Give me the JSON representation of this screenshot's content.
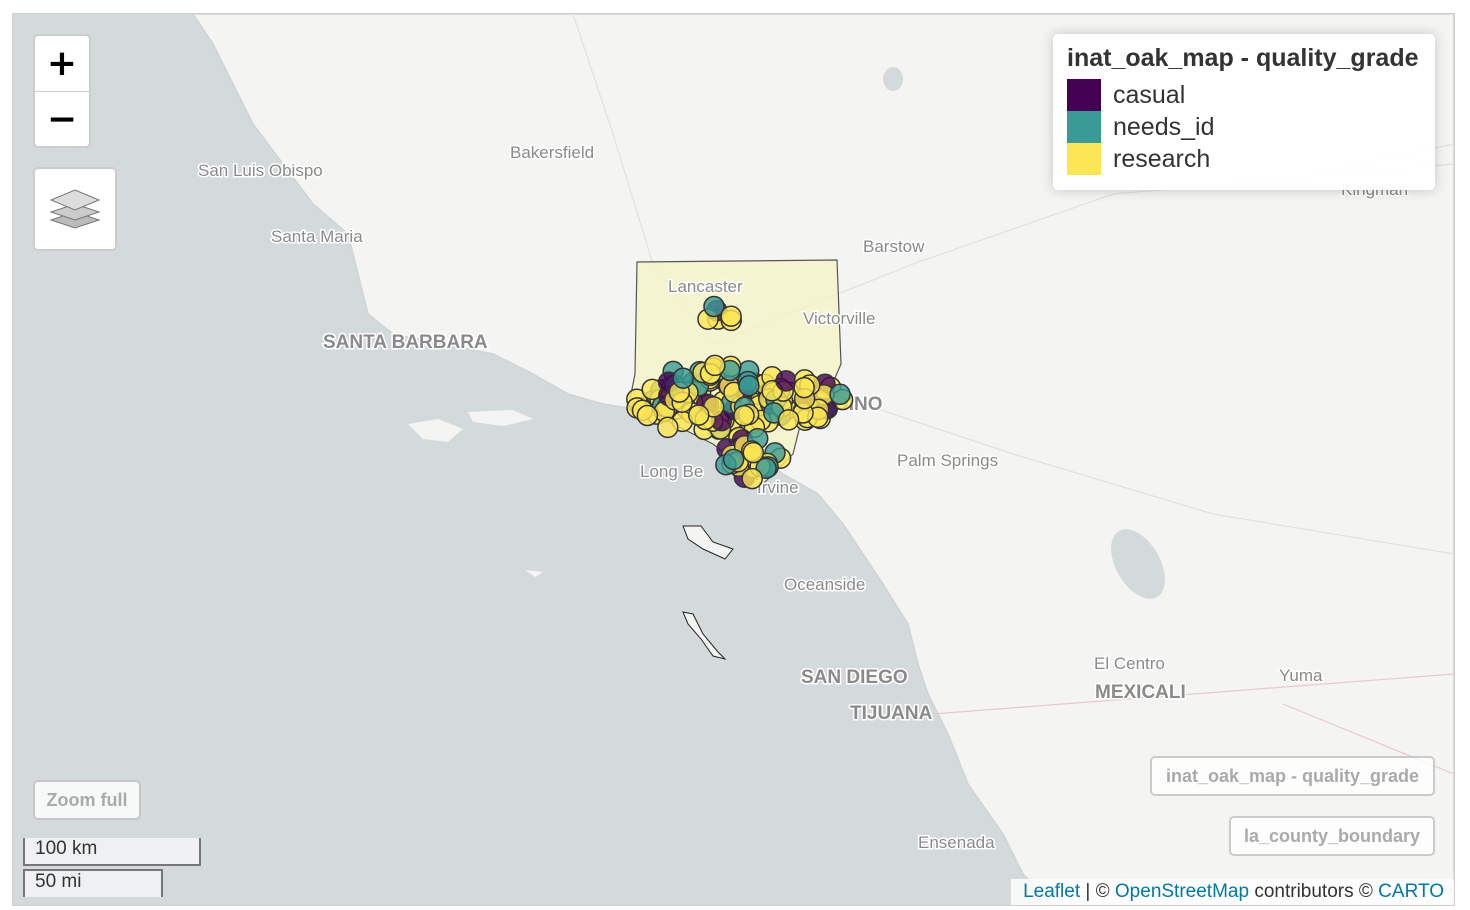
{
  "map": {
    "zoom_in_label": "+",
    "zoom_out_label": "−",
    "layers_icon": "layers-icon",
    "legend": {
      "title": "inat_oak_map - quality_grade",
      "items": [
        {
          "label": "casual",
          "color": "#440154"
        },
        {
          "label": "needs_id",
          "color": "#3a9a96"
        },
        {
          "label": "research",
          "color": "#fde655"
        }
      ]
    },
    "zoom_full_label": "Zoom full",
    "layer_buttons": [
      "inat_oak_map - quality_grade",
      "la_county_boundary"
    ],
    "scale": {
      "km": "100 km",
      "mi": "50 mi"
    },
    "attribution": {
      "leaflet": "Leaflet",
      "osm": "OpenStreetMap",
      "contributors": "contributors",
      "carto": "CARTO",
      "sep": "|",
      "copy": "©"
    },
    "places": [
      {
        "name": "San Luis Obispo",
        "size": "normal"
      },
      {
        "name": "Bakersfield",
        "size": "normal"
      },
      {
        "name": "Santa Maria",
        "size": "normal"
      },
      {
        "name": "Barstow",
        "size": "normal"
      },
      {
        "name": "Lancaster",
        "size": "normal"
      },
      {
        "name": "Victorville",
        "size": "normal"
      },
      {
        "name": "SANTA BARBARA",
        "size": "big"
      },
      {
        "name": "DINO",
        "size": "big"
      },
      {
        "name": "Palm Springs",
        "size": "normal"
      },
      {
        "name": "Long Be",
        "size": "normal"
      },
      {
        "name": "Irvine",
        "size": "normal"
      },
      {
        "name": "Oceanside",
        "size": "normal"
      },
      {
        "name": "SAN DIEGO",
        "size": "big"
      },
      {
        "name": "TIJUANA",
        "size": "big"
      },
      {
        "name": "El Centro",
        "size": "normal"
      },
      {
        "name": "MEXICALI",
        "size": "big"
      },
      {
        "name": "Yuma",
        "size": "normal"
      },
      {
        "name": "Ensenada",
        "size": "normal"
      },
      {
        "name": "Kingman",
        "size": "normal"
      }
    ]
  }
}
